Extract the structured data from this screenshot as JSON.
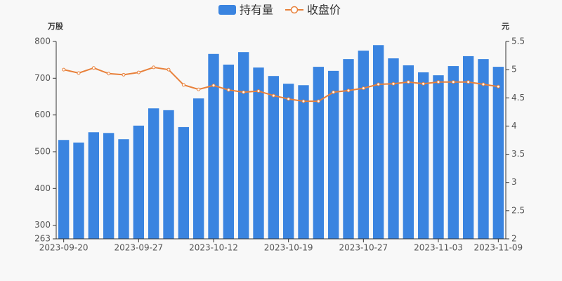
{
  "chart_data": {
    "type": "bar",
    "categories": [
      "2023-09-20",
      null,
      null,
      null,
      null,
      "2023-09-27",
      null,
      null,
      null,
      null,
      "2023-10-12",
      null,
      null,
      null,
      null,
      "2023-10-19",
      null,
      null,
      null,
      null,
      "2023-10-27",
      null,
      null,
      null,
      null,
      "2023-11-03",
      null,
      null,
      null,
      "2023-11-09"
    ],
    "series": [
      {
        "name": "持有量",
        "type": "bar",
        "color": "#3a84e0",
        "values": [
          532,
          525,
          553,
          551,
          534,
          571,
          618,
          613,
          567,
          645,
          766,
          737,
          771,
          729,
          706,
          685,
          681,
          731,
          720,
          752,
          775,
          790,
          754,
          735,
          716,
          708,
          733,
          760,
          752,
          731
        ]
      },
      {
        "name": "收盘价",
        "type": "line",
        "axis": "y2",
        "color": "#e8803a",
        "values": [
          5.0,
          4.94,
          5.03,
          4.93,
          4.91,
          4.95,
          5.04,
          5.0,
          4.73,
          4.65,
          4.72,
          4.64,
          4.6,
          4.62,
          4.54,
          4.48,
          4.44,
          4.44,
          4.6,
          4.63,
          4.67,
          4.74,
          4.75,
          4.78,
          4.75,
          4.78,
          4.78,
          4.78,
          4.74,
          4.7
        ]
      }
    ],
    "y_unit": "万股",
    "y2_unit": "元",
    "ylim": [
      263,
      800
    ],
    "yticks": [
      263,
      300,
      400,
      500,
      600,
      700,
      800
    ],
    "y2lim": [
      2,
      5.5
    ],
    "y2ticks": [
      2,
      2.5,
      3,
      3.5,
      4,
      4.5,
      5,
      5.5
    ],
    "grid": false
  }
}
